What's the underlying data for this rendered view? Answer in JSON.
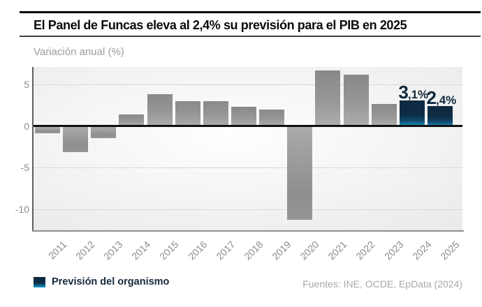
{
  "header": {
    "title": "El Panel de Funcas eleva al 2,4% su previsión para el PIB en 2025"
  },
  "chart_data": {
    "type": "bar",
    "title": "El Panel de Funcas eleva al 2,4% su previsión para el PIB en 2025",
    "subtitle": "Variación anual (%)",
    "unit": "%",
    "categories": [
      "2011",
      "2012",
      "2013",
      "2014",
      "2015",
      "2016",
      "2017",
      "2018",
      "2019",
      "2020",
      "2021",
      "2022",
      "2023",
      "2024",
      "2025"
    ],
    "values": [
      -0.8,
      -3.0,
      -1.4,
      1.4,
      3.8,
      3.0,
      3.0,
      2.3,
      2.0,
      -11.2,
      6.7,
      6.2,
      2.7,
      3.1,
      2.4
    ],
    "forecast_indices": [
      13,
      14
    ],
    "annotations": [
      {
        "index": 13,
        "label": "3,1%",
        "big": "3",
        "small": ",1%"
      },
      {
        "index": 14,
        "label": "2,4%",
        "big": "2",
        "small": ",4%"
      }
    ],
    "yticks": [
      {
        "value": 5,
        "label": "5"
      },
      {
        "value": 0,
        "label": "0"
      },
      {
        "value": -5,
        "label": "-5"
      },
      {
        "value": -10,
        "label": "-10"
      }
    ],
    "ylim": [
      -12.5,
      7.1
    ],
    "grid": "horizontal",
    "legend_position": "bottom-left",
    "colors": {
      "bar_historical_dark": "#8c8c8c",
      "bar_historical_light": "#aeaeae",
      "bar_forecast_top": "#0d2940",
      "bar_forecast_bottom": "#1aa8d1",
      "annotation_text": "#12293c",
      "zero_axis": "#101010",
      "gridline": "#d8d8d8"
    }
  },
  "legend": {
    "forecast_label": "Previsión del organismo"
  },
  "footer": {
    "source": "Fuentes: INE, OCDE, EpData (2024)"
  }
}
